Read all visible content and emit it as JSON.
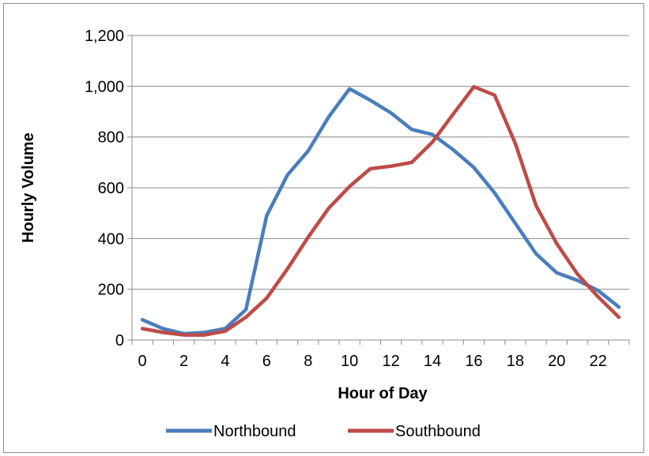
{
  "chart_data": {
    "type": "line",
    "title": "",
    "xlabel": "Hour of Day",
    "ylabel": "Hourly Volume",
    "xlim": [
      0,
      23
    ],
    "ylim": [
      0,
      1200
    ],
    "x": [
      0,
      1,
      2,
      3,
      4,
      5,
      6,
      7,
      8,
      9,
      10,
      11,
      12,
      13,
      14,
      15,
      16,
      17,
      18,
      19,
      20,
      21,
      22,
      23
    ],
    "x_tick_labels": [
      "0",
      "2",
      "4",
      "6",
      "8",
      "10",
      "12",
      "14",
      "16",
      "18",
      "20",
      "22"
    ],
    "y_tick_labels": [
      "0",
      "200",
      "400",
      "600",
      "800",
      "1,000",
      "1,200"
    ],
    "grid": true,
    "legend_position": "bottom",
    "series": [
      {
        "name": "Northbound",
        "color": "#4a7ebb",
        "values": [
          80,
          45,
          25,
          30,
          45,
          120,
          490,
          650,
          745,
          880,
          990,
          945,
          895,
          830,
          810,
          750,
          680,
          580,
          460,
          340,
          265,
          235,
          195,
          130
        ]
      },
      {
        "name": "Southbound",
        "color": "#be4b48",
        "values": [
          45,
          30,
          20,
          20,
          35,
          90,
          165,
          280,
          405,
          520,
          605,
          675,
          685,
          700,
          780,
          890,
          998,
          965,
          775,
          530,
          380,
          260,
          170,
          90
        ]
      }
    ]
  }
}
